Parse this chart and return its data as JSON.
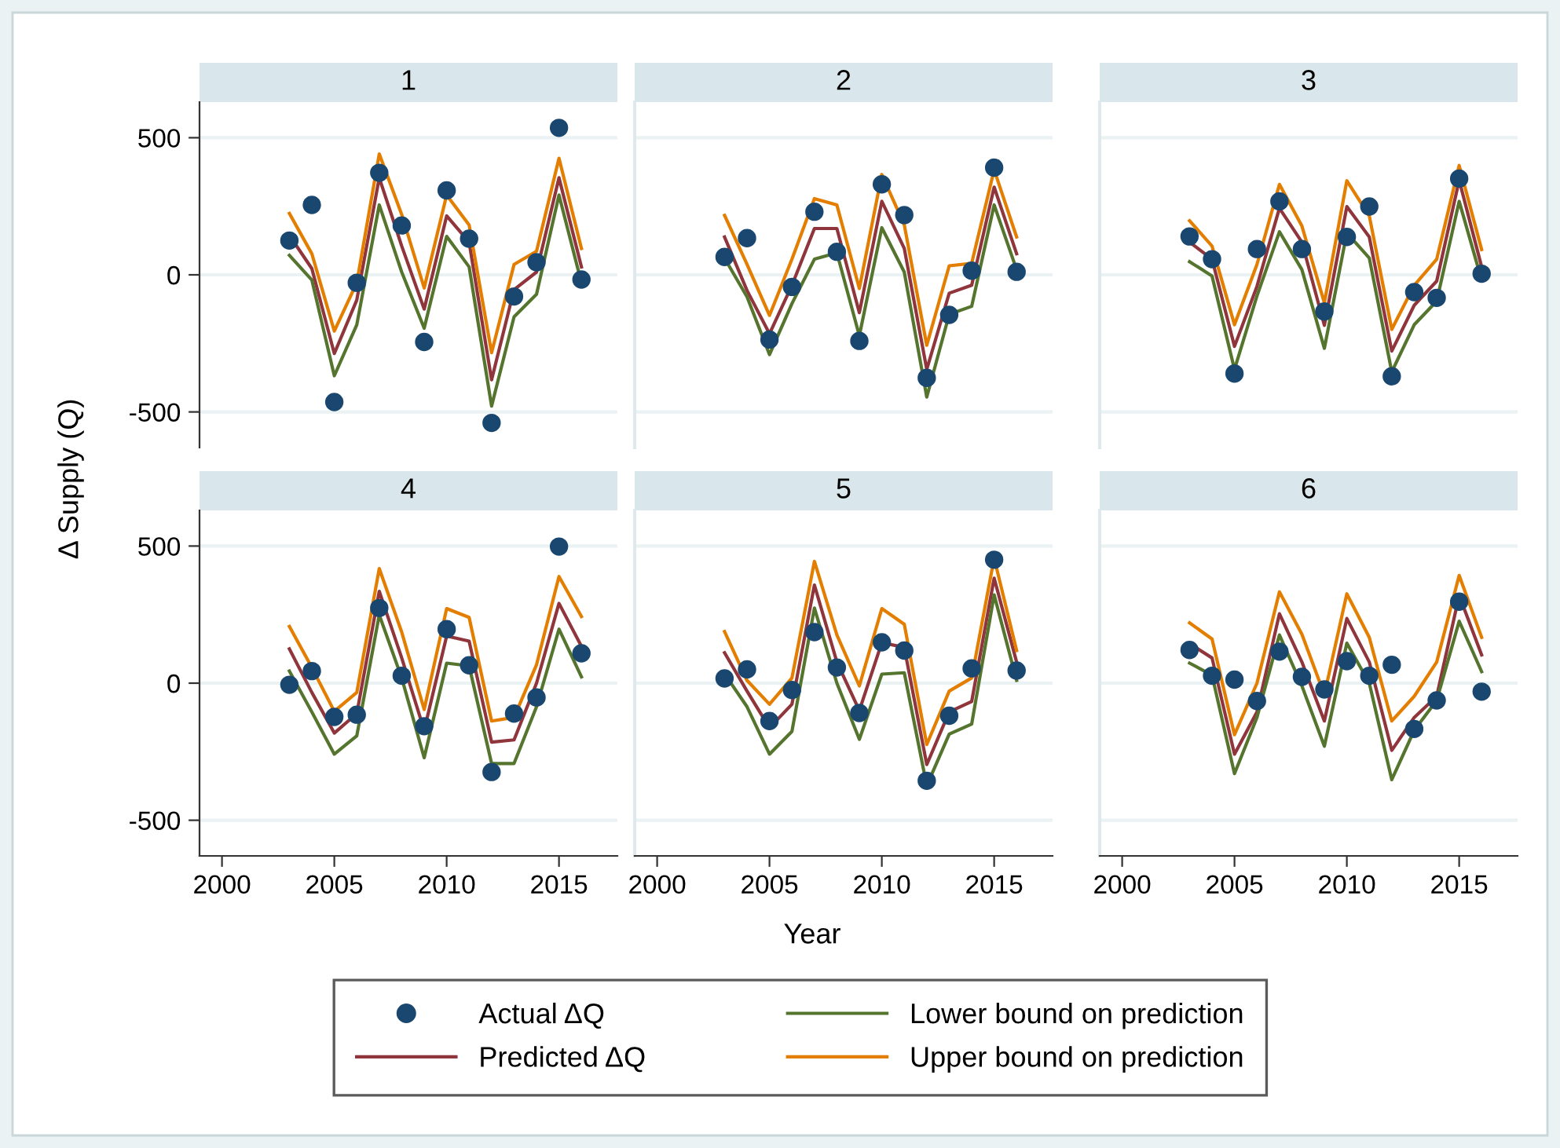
{
  "chart_data": [
    {
      "type": "line",
      "title": "1",
      "ylabel": "Δ Supply (Q)",
      "legend": "bottom",
      "tick_labels": "y",
      "grid": "y",
      "xlim": [
        1999,
        2017.6
      ],
      "ylim": [
        -630,
        630
      ],
      "xticks": [
        2000,
        2005,
        2010,
        2015
      ],
      "yticks": [
        -500,
        0,
        500
      ],
      "x": [
        2003,
        2004,
        2005,
        2006,
        2007,
        2008,
        2009,
        2010,
        2011,
        2012,
        2013,
        2014,
        2015,
        2016
      ],
      "series": [
        {
          "name": "Actual ΔQ",
          "type": "scatter",
          "marker": "circle",
          "color": "#1a476f",
          "values": [
            125,
            255,
            -464,
            -29,
            372,
            180,
            -245,
            308,
            132,
            -540,
            -79,
            46,
            536,
            -17
          ]
        },
        {
          "name": "Predicted ΔQ",
          "marker": "none",
          "color": "#90353b",
          "values": [
            144,
            23,
            -287,
            -92,
            354,
            105,
            -125,
            215,
            119,
            -383,
            -54,
            10,
            354,
            29
          ]
        },
        {
          "name": "Lower bound on prediction",
          "marker": "none",
          "color": "#55752f",
          "values": [
            71,
            -19,
            -368,
            -182,
            255,
            10,
            -195,
            140,
            29,
            -479,
            -153,
            -71,
            291,
            -29
          ]
        },
        {
          "name": "Upper bound on prediction",
          "marker": "none",
          "color": "#e37e00",
          "values": [
            224,
            77,
            -205,
            -29,
            441,
            220,
            -48,
            291,
            182,
            -284,
            38,
            86,
            425,
            96
          ]
        }
      ]
    },
    {
      "type": "line",
      "title": "2",
      "tick_labels": false,
      "grid": "y",
      "xlim": [
        1999,
        2017.6
      ],
      "ylim": [
        -630,
        630
      ],
      "xticks": [
        2000,
        2005,
        2010,
        2015
      ],
      "yticks": [
        -500,
        0,
        500
      ],
      "x": [
        2003,
        2004,
        2005,
        2006,
        2007,
        2008,
        2009,
        2010,
        2011,
        2012,
        2013,
        2014,
        2015,
        2016
      ],
      "series": [
        {
          "type": "scatter",
          "marker": "circle",
          "color": "#1a476f",
          "values": [
            65,
            134,
            -236,
            -44,
            230,
            84,
            -241,
            330,
            218,
            -376,
            -146,
            15,
            391,
            11
          ]
        },
        {
          "marker": "none",
          "color": "#90353b",
          "values": [
            138,
            -57,
            -215,
            -38,
            169,
            169,
            -138,
            268,
            96,
            -345,
            -67,
            -38,
            320,
            77
          ]
        },
        {
          "marker": "none",
          "color": "#55752f",
          "values": [
            61,
            -80,
            -291,
            -105,
            57,
            80,
            -222,
            172,
            10,
            -446,
            -144,
            -115,
            255,
            19
          ]
        },
        {
          "marker": "none",
          "color": "#e37e00",
          "values": [
            217,
            38,
            -148,
            57,
            278,
            255,
            -50,
            366,
            182,
            -257,
            33,
            42,
            383,
            138
          ]
        }
      ]
    },
    {
      "type": "line",
      "title": "3",
      "tick_labels": false,
      "grid": "y",
      "xlim": [
        1999,
        2017.6
      ],
      "ylim": [
        -630,
        630
      ],
      "xticks": [
        2000,
        2005,
        2010,
        2015
      ],
      "yticks": [
        -500,
        0,
        500
      ],
      "x": [
        2003,
        2004,
        2005,
        2006,
        2007,
        2008,
        2009,
        2010,
        2011,
        2012,
        2013,
        2014,
        2015,
        2016
      ],
      "series": [
        {
          "type": "scatter",
          "marker": "circle",
          "color": "#1a476f",
          "values": [
            140,
            57,
            -360,
            94,
            268,
            94,
            -134,
            138,
            249,
            -370,
            -63,
            -84,
            351,
            4
          ]
        },
        {
          "marker": "none",
          "color": "#90353b",
          "values": [
            119,
            57,
            -261,
            -42,
            243,
            119,
            -184,
            249,
            138,
            -278,
            -111,
            -23,
            345,
            29
          ]
        },
        {
          "marker": "none",
          "color": "#55752f",
          "values": [
            48,
            -4,
            -345,
            -77,
            157,
            19,
            -268,
            153,
            61,
            -354,
            -182,
            -96,
            268,
            -19
          ]
        },
        {
          "marker": "none",
          "color": "#e37e00",
          "values": [
            197,
            105,
            -182,
            38,
            330,
            178,
            -102,
            343,
            215,
            -199,
            -38,
            57,
            399,
            92
          ]
        }
      ]
    },
    {
      "type": "line",
      "title": "4",
      "grid": "y",
      "xlim": [
        1999,
        2017.6
      ],
      "ylim": [
        -630,
        630
      ],
      "xticks": [
        2000,
        2005,
        2010,
        2015
      ],
      "yticks": [
        -500,
        0,
        500
      ],
      "x": [
        2003,
        2004,
        2005,
        2006,
        2007,
        2008,
        2009,
        2010,
        2011,
        2012,
        2013,
        2014,
        2015,
        2016
      ],
      "series": [
        {
          "type": "scatter",
          "marker": "circle",
          "color": "#1a476f",
          "values": [
            -6,
            44,
            -123,
            -115,
            274,
            27,
            -157,
            197,
            65,
            -324,
            -111,
            -52,
            498,
            109
          ]
        },
        {
          "marker": "none",
          "color": "#90353b",
          "values": [
            125,
            -34,
            -182,
            -111,
            335,
            92,
            -172,
            172,
            153,
            -215,
            -207,
            0,
            291,
            134
          ]
        },
        {
          "marker": "none",
          "color": "#55752f",
          "values": [
            44,
            -105,
            -259,
            -192,
            249,
            19,
            -272,
            73,
            63,
            -293,
            -293,
            -86,
            197,
            23
          ]
        },
        {
          "marker": "none",
          "color": "#e37e00",
          "values": [
            207,
            57,
            -103,
            -34,
            418,
            186,
            -96,
            272,
            240,
            -138,
            -125,
            67,
            389,
            243
          ]
        }
      ]
    },
    {
      "type": "line",
      "title": "5",
      "xlabel": "Year",
      "tick_labels": "x",
      "grid": "y",
      "xlim": [
        1999,
        2017.6
      ],
      "ylim": [
        -630,
        630
      ],
      "xticks": [
        2000,
        2005,
        2010,
        2015
      ],
      "yticks": [
        -500,
        0,
        500
      ],
      "x": [
        2003,
        2004,
        2005,
        2006,
        2007,
        2008,
        2009,
        2010,
        2011,
        2012,
        2013,
        2014,
        2015,
        2016
      ],
      "series": [
        {
          "type": "scatter",
          "marker": "circle",
          "color": "#1a476f",
          "values": [
            17,
            50,
            -138,
            -25,
            186,
            57,
            -109,
            149,
            119,
            -356,
            -119,
            54,
            450,
            46
          ]
        },
        {
          "marker": "none",
          "color": "#90353b",
          "values": [
            111,
            -29,
            -163,
            -77,
            358,
            77,
            -100,
            148,
            130,
            -297,
            -105,
            -67,
            383,
            77
          ]
        },
        {
          "marker": "none",
          "color": "#55752f",
          "values": [
            34,
            -86,
            -259,
            -176,
            274,
            0,
            -205,
            33,
            38,
            -374,
            -186,
            -149,
            322,
            10
          ]
        },
        {
          "marker": "none",
          "color": "#e37e00",
          "values": [
            188,
            10,
            -77,
            19,
            444,
            176,
            -10,
            272,
            215,
            -224,
            -29,
            19,
            456,
            119
          ]
        }
      ]
    },
    {
      "type": "line",
      "title": "6",
      "tick_labels": "x",
      "grid": "y",
      "xlim": [
        1999,
        2017.6
      ],
      "ylim": [
        -630,
        630
      ],
      "xticks": [
        2000,
        2005,
        2010,
        2015
      ],
      "yticks": [
        -500,
        0,
        500
      ],
      "x": [
        2003,
        2004,
        2005,
        2006,
        2007,
        2008,
        2009,
        2010,
        2011,
        2012,
        2013,
        2014,
        2015,
        2016
      ],
      "series": [
        {
          "type": "scatter",
          "marker": "circle",
          "color": "#1a476f",
          "values": [
            121,
            27,
            13,
            -65,
            115,
            23,
            -23,
            80,
            27,
            67,
            -167,
            -63,
            297,
            -31
          ]
        },
        {
          "marker": "none",
          "color": "#90353b",
          "values": [
            144,
            92,
            -259,
            -105,
            253,
            77,
            -138,
            236,
            77,
            -245,
            -125,
            -48,
            320,
            103
          ]
        },
        {
          "marker": "none",
          "color": "#55752f",
          "values": [
            73,
            29,
            -330,
            -125,
            176,
            -10,
            -230,
            146,
            0,
            -352,
            -172,
            -63,
            226,
            42
          ]
        },
        {
          "marker": "none",
          "color": "#e37e00",
          "values": [
            220,
            161,
            -188,
            0,
            333,
            178,
            -42,
            326,
            167,
            -138,
            -48,
            77,
            393,
            167
          ]
        }
      ]
    }
  ]
}
